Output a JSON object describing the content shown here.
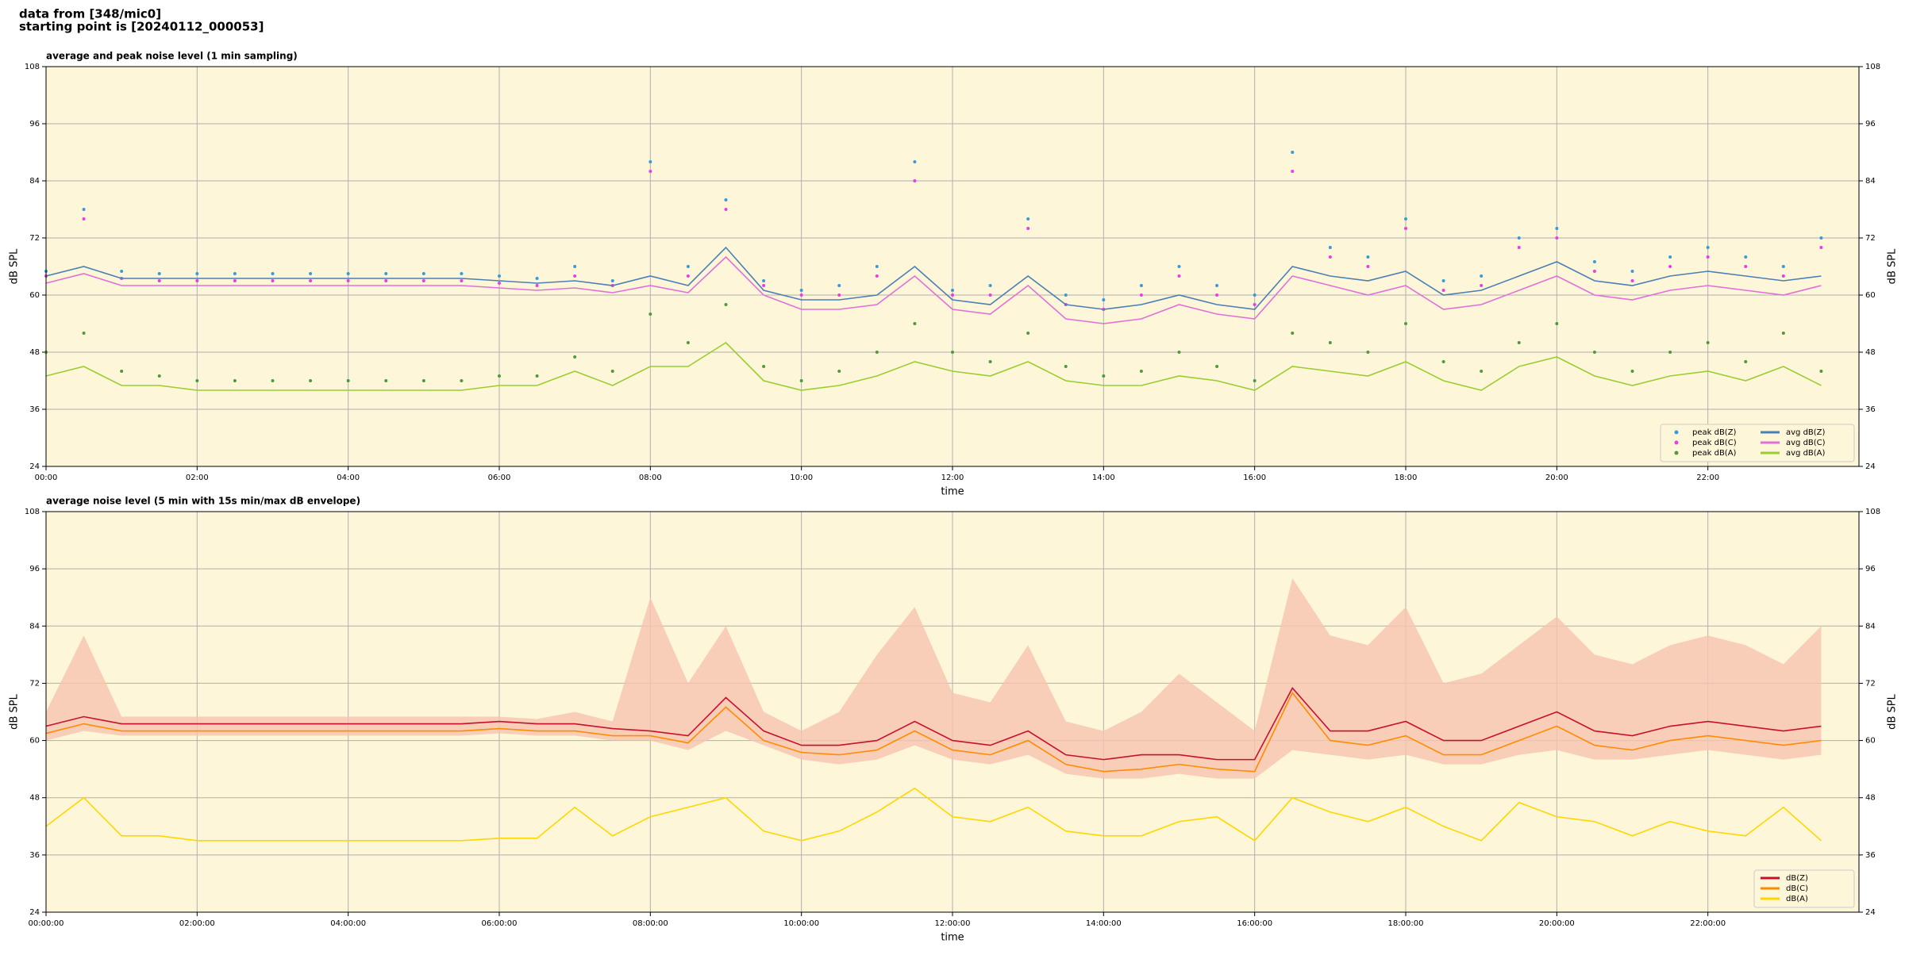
{
  "header": {
    "line1": "data from [348/mic0]",
    "line2": "starting point is [20240112_000053]"
  },
  "chart_data": [
    {
      "type": "line",
      "title": "average and peak noise level (1 min sampling)",
      "xlabel": "time",
      "ylabel": "dB SPL",
      "y2label": "dB SPL",
      "x": [
        0,
        0.5,
        1,
        1.5,
        2,
        2.5,
        3,
        3.5,
        4,
        4.5,
        5,
        5.5,
        6,
        6.5,
        7,
        7.5,
        8,
        8.5,
        9,
        9.5,
        10,
        10.5,
        11,
        11.5,
        12,
        12.5,
        13,
        13.5,
        14,
        14.5,
        15,
        15.5,
        16,
        16.5,
        17,
        17.5,
        18,
        18.5,
        19,
        19.5,
        20,
        20.5,
        21,
        21.5,
        22,
        22.5,
        23,
        23.5
      ],
      "xlim": [
        0,
        24
      ],
      "xticks": [
        {
          "value": 0,
          "label": "00:00"
        },
        {
          "value": 2,
          "label": "02:00"
        },
        {
          "value": 4,
          "label": "04:00"
        },
        {
          "value": 6,
          "label": "06:00"
        },
        {
          "value": 8,
          "label": "08:00"
        },
        {
          "value": 10,
          "label": "10:00"
        },
        {
          "value": 12,
          "label": "12:00"
        },
        {
          "value": 14,
          "label": "14:00"
        },
        {
          "value": 16,
          "label": "16:00"
        },
        {
          "value": 18,
          "label": "18:00"
        },
        {
          "value": 20,
          "label": "20:00"
        },
        {
          "value": 22,
          "label": "22:00"
        }
      ],
      "ylim": [
        24,
        108
      ],
      "yticks": [
        24,
        36,
        48,
        60,
        72,
        84,
        96,
        108
      ],
      "grid": true,
      "legend": "lower right",
      "background": "#fef6d8",
      "series": [
        {
          "name": "peak dB(Z)",
          "kind": "scatter",
          "color": "#3a9ad9",
          "values": [
            65,
            78,
            65,
            64.5,
            64.5,
            64.5,
            64.5,
            64.5,
            64.5,
            64.5,
            64.5,
            64.5,
            64,
            63.5,
            66,
            63,
            88,
            66,
            80,
            63,
            61,
            62,
            66,
            88,
            61,
            62,
            76,
            60,
            59,
            62,
            66,
            62,
            60,
            90,
            70,
            68,
            76,
            63,
            64,
            72,
            74,
            67,
            65,
            68,
            70,
            68,
            66,
            72
          ]
        },
        {
          "name": "peak dB(C)",
          "kind": "scatter",
          "color": "#e83ee8",
          "values": [
            64,
            76,
            63.5,
            63,
            63,
            63,
            63,
            63,
            63,
            63,
            63,
            63,
            62.5,
            62,
            64,
            62,
            86,
            64,
            78,
            62,
            60,
            60,
            64,
            84,
            60,
            60,
            74,
            58,
            57,
            60,
            64,
            60,
            58,
            86,
            68,
            66,
            74,
            61,
            62,
            70,
            72,
            65,
            63,
            66,
            68,
            66,
            64,
            70
          ]
        },
        {
          "name": "peak dB(A)",
          "kind": "scatter",
          "color": "#4f9a3a",
          "values": [
            48,
            52,
            44,
            43,
            42,
            42,
            42,
            42,
            42,
            42,
            42,
            42,
            43,
            43,
            47,
            44,
            56,
            50,
            58,
            45,
            42,
            44,
            48,
            54,
            48,
            46,
            52,
            45,
            43,
            44,
            48,
            45,
            42,
            52,
            50,
            48,
            54,
            46,
            44,
            50,
            54,
            48,
            44,
            48,
            50,
            46,
            52,
            44
          ]
        },
        {
          "name": "avg dB(Z)",
          "kind": "line",
          "color": "#4a7fb5",
          "values": [
            64,
            66,
            63.5,
            63.5,
            63.5,
            63.5,
            63.5,
            63.5,
            63.5,
            63.5,
            63.5,
            63.5,
            63,
            62.5,
            63,
            62,
            64,
            62,
            70,
            61,
            59,
            59,
            60,
            66,
            59,
            58,
            64,
            58,
            57,
            58,
            60,
            58,
            57,
            66,
            64,
            63,
            65,
            60,
            61,
            64,
            67,
            63,
            62,
            64,
            65,
            64,
            63,
            64
          ]
        },
        {
          "name": "avg dB(C)",
          "kind": "line",
          "color": "#e070d8",
          "values": [
            62.5,
            64.5,
            62,
            62,
            62,
            62,
            62,
            62,
            62,
            62,
            62,
            62,
            61.5,
            61,
            61.5,
            60.5,
            62,
            60.5,
            68,
            60,
            57,
            57,
            58,
            64,
            57,
            56,
            62,
            55,
            54,
            55,
            58,
            56,
            55,
            64,
            62,
            60,
            62,
            57,
            58,
            61,
            64,
            60,
            59,
            61,
            62,
            61,
            60,
            62
          ]
        },
        {
          "name": "avg dB(A)",
          "kind": "line",
          "color": "#9acd32",
          "values": [
            43,
            45,
            41,
            41,
            40,
            40,
            40,
            40,
            40,
            40,
            40,
            40,
            41,
            41,
            44,
            41,
            45,
            45,
            50,
            42,
            40,
            41,
            43,
            46,
            44,
            43,
            46,
            42,
            41,
            41,
            43,
            42,
            40,
            45,
            44,
            43,
            46,
            42,
            40,
            45,
            47,
            43,
            41,
            43,
            44,
            42,
            45,
            41
          ]
        }
      ]
    },
    {
      "type": "line",
      "title": "average noise level (5 min with 15s min/max dB envelope)",
      "xlabel": "time",
      "ylabel": "dB SPL",
      "y2label": "dB SPL",
      "x": [
        0,
        0.5,
        1,
        1.5,
        2,
        2.5,
        3,
        3.5,
        4,
        4.5,
        5,
        5.5,
        6,
        6.5,
        7,
        7.5,
        8,
        8.5,
        9,
        9.5,
        10,
        10.5,
        11,
        11.5,
        12,
        12.5,
        13,
        13.5,
        14,
        14.5,
        15,
        15.5,
        16,
        16.5,
        17,
        17.5,
        18,
        18.5,
        19,
        19.5,
        20,
        20.5,
        21,
        21.5,
        22,
        22.5,
        23,
        23.5
      ],
      "xlim": [
        0,
        24
      ],
      "xticks": [
        {
          "value": 0,
          "label": "00:00:00"
        },
        {
          "value": 2,
          "label": "02:00:00"
        },
        {
          "value": 4,
          "label": "04:00:00"
        },
        {
          "value": 6,
          "label": "06:00:00"
        },
        {
          "value": 8,
          "label": "08:00:00"
        },
        {
          "value": 10,
          "label": "10:00:00"
        },
        {
          "value": 12,
          "label": "12:00:00"
        },
        {
          "value": 14,
          "label": "14:00:00"
        },
        {
          "value": 16,
          "label": "16:00:00"
        },
        {
          "value": 18,
          "label": "18:00:00"
        },
        {
          "value": 20,
          "label": "20:00:00"
        },
        {
          "value": 22,
          "label": "22:00:00"
        }
      ],
      "ylim": [
        24,
        108
      ],
      "yticks": [
        24,
        36,
        48,
        60,
        72,
        84,
        96,
        108
      ],
      "grid": true,
      "legend": "lower right",
      "background": "#fef6d8",
      "envelope": {
        "color": "#f7c4b0",
        "low": [
          60,
          62,
          61,
          61,
          61,
          61,
          61,
          61,
          61,
          61,
          61,
          61,
          61.5,
          61,
          61,
          60,
          60,
          58,
          62,
          59,
          56,
          55,
          56,
          59,
          56,
          55,
          57,
          53,
          52,
          52,
          53,
          52,
          52,
          58,
          57,
          56,
          57,
          55,
          55,
          57,
          58,
          56,
          56,
          57,
          58,
          57,
          56,
          57
        ],
        "high": [
          66,
          82,
          65,
          65,
          65,
          65,
          65,
          65,
          65,
          65,
          65,
          65,
          65,
          64.5,
          66,
          64,
          90,
          72,
          84,
          66,
          62,
          66,
          78,
          88,
          70,
          68,
          80,
          64,
          62,
          66,
          74,
          68,
          62,
          94,
          82,
          80,
          88,
          72,
          74,
          80,
          86,
          78,
          76,
          80,
          82,
          80,
          76,
          84
        ]
      },
      "series": [
        {
          "name": "dB(Z)",
          "kind": "line",
          "color": "#c8102e",
          "values": [
            63,
            65,
            63.5,
            63.5,
            63.5,
            63.5,
            63.5,
            63.5,
            63.5,
            63.5,
            63.5,
            63.5,
            64,
            63.5,
            63.5,
            62.5,
            62,
            61,
            69,
            62,
            59,
            59,
            60,
            64,
            60,
            59,
            62,
            57,
            56,
            57,
            57,
            56,
            56,
            71,
            62,
            62,
            64,
            60,
            60,
            63,
            66,
            62,
            61,
            63,
            64,
            63,
            62,
            63
          ]
        },
        {
          "name": "dB(C)",
          "kind": "line",
          "color": "#ff8c00",
          "values": [
            61.5,
            63.5,
            62,
            62,
            62,
            62,
            62,
            62,
            62,
            62,
            62,
            62,
            62.5,
            62,
            62,
            61,
            61,
            59.5,
            67,
            60,
            57.5,
            57,
            58,
            62,
            58,
            57,
            60,
            55,
            53.5,
            54,
            55,
            54,
            53.5,
            70,
            60,
            59,
            61,
            57,
            57,
            60,
            63,
            59,
            58,
            60,
            61,
            60,
            59,
            60
          ]
        },
        {
          "name": "dB(A)",
          "kind": "line",
          "color": "#ffd700",
          "values": [
            42,
            48,
            40,
            40,
            39,
            39,
            39,
            39,
            39,
            39,
            39,
            39,
            39.5,
            39.5,
            46,
            40,
            44,
            46,
            48,
            41,
            39,
            41,
            45,
            50,
            44,
            43,
            46,
            41,
            40,
            40,
            43,
            44,
            39,
            48,
            45,
            43,
            46,
            42,
            39,
            47,
            44,
            43,
            40,
            43,
            41,
            40,
            46,
            39
          ]
        }
      ]
    }
  ]
}
